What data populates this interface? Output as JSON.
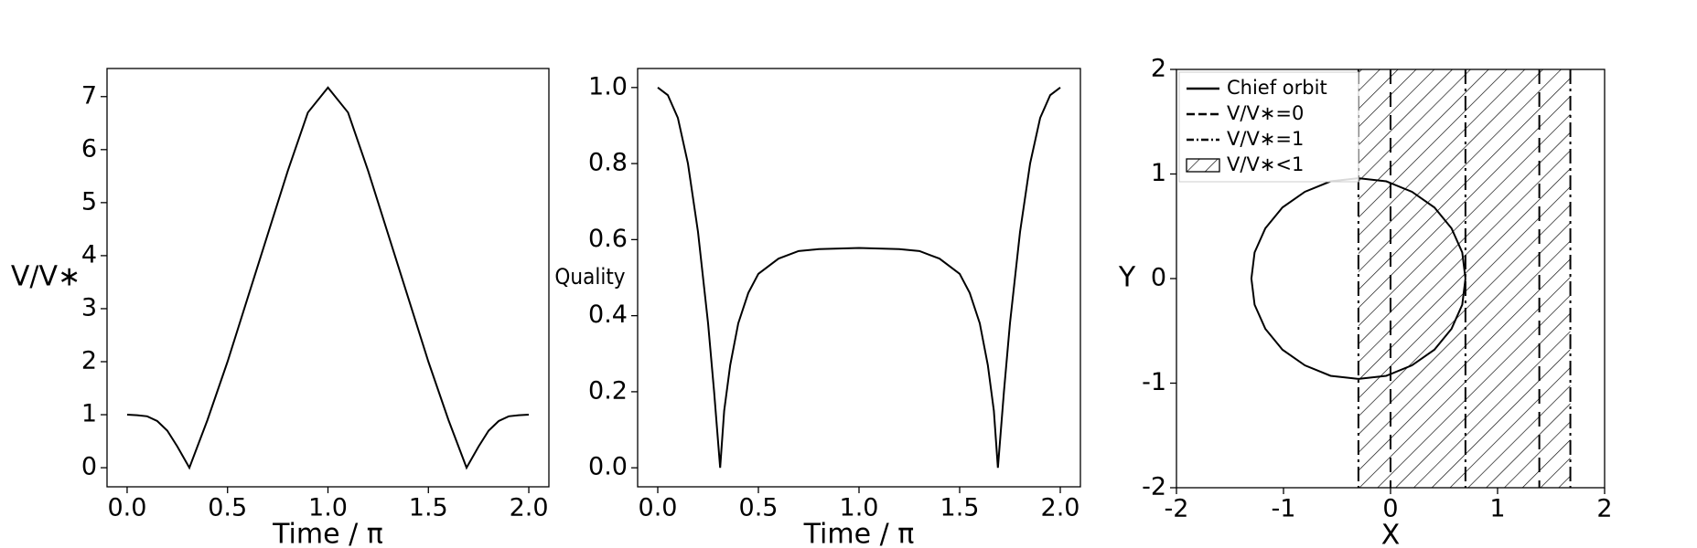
{
  "chart_data": [
    {
      "type": "line",
      "xlabel": "Time / π",
      "ylabel": "V/V∗",
      "xlim": [
        -0.1,
        2.1
      ],
      "ylim": [
        -0.36,
        7.53
      ],
      "xticks": [
        {
          "value": 0,
          "label": "0.0"
        },
        {
          "value": 0.5,
          "label": "0.5"
        },
        {
          "value": 1,
          "label": "1.0"
        },
        {
          "value": 1.5,
          "label": "1.5"
        },
        {
          "value": 2,
          "label": "2.0"
        }
      ],
      "yticks": [
        0,
        1,
        2,
        3,
        4,
        5,
        6,
        7
      ],
      "x": [
        0,
        0.05,
        0.1,
        0.15,
        0.2,
        0.25,
        0.31,
        0.4,
        0.5,
        0.6,
        0.7,
        0.8,
        0.9,
        1.0,
        1.1,
        1.2,
        1.3,
        1.4,
        1.5,
        1.6,
        1.69,
        1.75,
        1.8,
        1.85,
        1.9,
        1.95,
        2.0
      ],
      "series": [
        {
          "color": "#000000",
          "values": [
            1,
            0.99,
            0.97,
            0.88,
            0.7,
            0.4,
            0,
            0.9,
            2.0,
            3.2,
            4.4,
            5.6,
            6.7,
            7.17,
            6.7,
            5.6,
            4.4,
            3.2,
            2.0,
            0.9,
            0,
            0.4,
            0.7,
            0.88,
            0.97,
            0.99,
            1
          ]
        }
      ]
    },
    {
      "type": "line",
      "xlabel": "Time / π",
      "ylabel": "Quality",
      "xlim": [
        -0.1,
        2.1
      ],
      "ylim": [
        -0.05,
        1.05
      ],
      "xticks": [
        {
          "value": 0,
          "label": "0.0"
        },
        {
          "value": 0.5,
          "label": "0.5"
        },
        {
          "value": 1,
          "label": "1.0"
        },
        {
          "value": 1.5,
          "label": "1.5"
        },
        {
          "value": 2,
          "label": "2.0"
        }
      ],
      "yticks": [
        {
          "value": 0,
          "label": "0.0"
        },
        {
          "value": 0.2,
          "label": "0.2"
        },
        {
          "value": 0.4,
          "label": "0.4"
        },
        {
          "value": 0.6,
          "label": "0.6"
        },
        {
          "value": 0.8,
          "label": "0.8"
        },
        {
          "value": 1,
          "label": "1.0"
        }
      ],
      "x": [
        0,
        0.05,
        0.1,
        0.15,
        0.2,
        0.25,
        0.28,
        0.31,
        0.33,
        0.36,
        0.4,
        0.45,
        0.5,
        0.6,
        0.7,
        0.8,
        1.0,
        1.2,
        1.3,
        1.4,
        1.5,
        1.55,
        1.6,
        1.64,
        1.67,
        1.69,
        1.72,
        1.75,
        1.8,
        1.85,
        1.9,
        1.95,
        2.0
      ],
      "series": [
        {
          "color": "#000000",
          "values": [
            1.0,
            0.98,
            0.92,
            0.8,
            0.62,
            0.38,
            0.2,
            0,
            0.15,
            0.27,
            0.38,
            0.46,
            0.51,
            0.55,
            0.57,
            0.575,
            0.578,
            0.575,
            0.57,
            0.55,
            0.51,
            0.46,
            0.38,
            0.27,
            0.15,
            0,
            0.2,
            0.38,
            0.62,
            0.8,
            0.92,
            0.98,
            1.0
          ]
        }
      ]
    },
    {
      "type": "region",
      "xlabel": "X",
      "ylabel": "Y",
      "legend": "upper left",
      "xlim": [
        -2,
        2
      ],
      "ylim": [
        -2,
        2
      ],
      "xticks": [
        -2,
        -1,
        0,
        1,
        2
      ],
      "yticks": [
        -2,
        -1,
        0,
        1,
        2
      ],
      "series": [
        {
          "name": "Chief orbit",
          "kind": "line",
          "color": "#000000",
          "x": [
            0.7,
            0.67,
            0.57,
            0.41,
            0.2,
            -0.04,
            -0.3,
            -0.56,
            -0.8,
            -1.01,
            -1.17,
            -1.27,
            -1.3,
            -1.27,
            -1.17,
            -1.01,
            -0.8,
            -0.56,
            -0.3,
            -0.04,
            0.2,
            0.41,
            0.57,
            0.67,
            0.7
          ],
          "values": [
            0,
            0.25,
            0.48,
            0.68,
            0.83,
            0.93,
            0.96,
            0.93,
            0.83,
            0.68,
            0.48,
            0.25,
            0,
            -0.25,
            -0.48,
            -0.68,
            -0.83,
            -0.93,
            -0.96,
            -0.93,
            -0.83,
            -0.68,
            -0.48,
            -0.25,
            0
          ]
        },
        {
          "name": "V/V∗=0",
          "kind": "vline",
          "style": "dashed",
          "color": "#000000",
          "x": [
            0,
            1.39
          ]
        },
        {
          "name": "V/V∗=1",
          "kind": "vline",
          "style": "dashdot",
          "color": "#000000",
          "x": [
            -0.3,
            0.7,
            1.68
          ]
        },
        {
          "name": "V/V∗<1",
          "kind": "hatch",
          "color": "#000000",
          "x": [
            -0.3,
            1.68
          ]
        }
      ]
    }
  ]
}
